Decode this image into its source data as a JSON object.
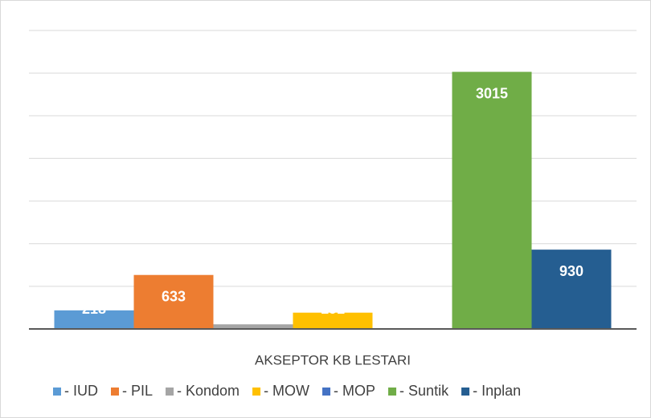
{
  "chart_data": {
    "type": "bar",
    "categories": [
      "AKSEPTOR KB LESTARI"
    ],
    "series": [
      {
        "name": "- IUD",
        "color": "#5b9bd5",
        "values": [
          218
        ]
      },
      {
        "name": "- PIL",
        "color": "#ed7d31",
        "values": [
          633
        ]
      },
      {
        "name": "- Kondom",
        "color": "#a5a5a5",
        "values": [
          54
        ]
      },
      {
        "name": "- MOW",
        "color": "#ffc000",
        "values": [
          191
        ]
      },
      {
        "name": "- MOP",
        "color": "#4472c4",
        "values": [
          2
        ]
      },
      {
        "name": "- Suntik",
        "color": "#70ad47",
        "values": [
          3015
        ]
      },
      {
        "name": "- Inplan",
        "color": "#255e91",
        "values": [
          930
        ]
      }
    ],
    "ylim": [
      0,
      3500
    ],
    "yticks": [
      0,
      500,
      1000,
      1500,
      2000,
      2500,
      3000,
      3500
    ],
    "grid": true,
    "legend": "bottom"
  }
}
